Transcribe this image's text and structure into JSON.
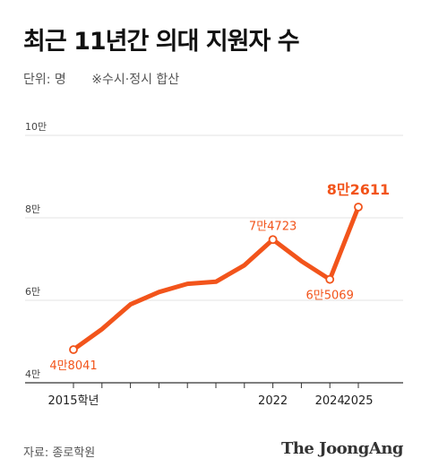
{
  "title": "최근 11년간 의대 지원자 수",
  "unit_label": "단위: 명",
  "note": "※수시·정시 합산",
  "source": "자료: 종로학원",
  "publisher": "The JoongAng",
  "colors": {
    "line": "#f2541b",
    "grid": "#e3e3e3",
    "axis": "#333333"
  },
  "chart_data": {
    "type": "line",
    "title": "최근 11년간 의대 지원자 수",
    "ylabel": "단위: 명",
    "ylim": [
      40000,
      100000
    ],
    "y_ticks": [
      {
        "value": 40000,
        "label": "4만"
      },
      {
        "value": 60000,
        "label": "6만"
      },
      {
        "value": 80000,
        "label": "8만"
      },
      {
        "value": 100000,
        "label": "10만"
      }
    ],
    "grid": true,
    "x": [
      2015,
      2016,
      2017,
      2018,
      2019,
      2020,
      2021,
      2022,
      2023,
      2024,
      2025
    ],
    "x_tick_labels": [
      {
        "x": 2015,
        "label": "2015학년"
      },
      {
        "x": 2022,
        "label": "2022"
      },
      {
        "x": 2024,
        "label": "2024"
      },
      {
        "x": 2025,
        "label": "2025"
      }
    ],
    "series": [
      {
        "values": [
          48041,
          53000,
          59000,
          62000,
          64000,
          64500,
          68500,
          74723,
          69500,
          65069,
          82611
        ]
      }
    ],
    "labels": [
      {
        "x": 2015,
        "text": "4만8041",
        "pos": "below"
      },
      {
        "x": 2022,
        "text": "7만4723",
        "pos": "above"
      },
      {
        "x": 2024,
        "text": "6만5069",
        "pos": "below"
      },
      {
        "x": 2025,
        "text": "8만2611",
        "pos": "above",
        "emphasis": true
      }
    ]
  }
}
